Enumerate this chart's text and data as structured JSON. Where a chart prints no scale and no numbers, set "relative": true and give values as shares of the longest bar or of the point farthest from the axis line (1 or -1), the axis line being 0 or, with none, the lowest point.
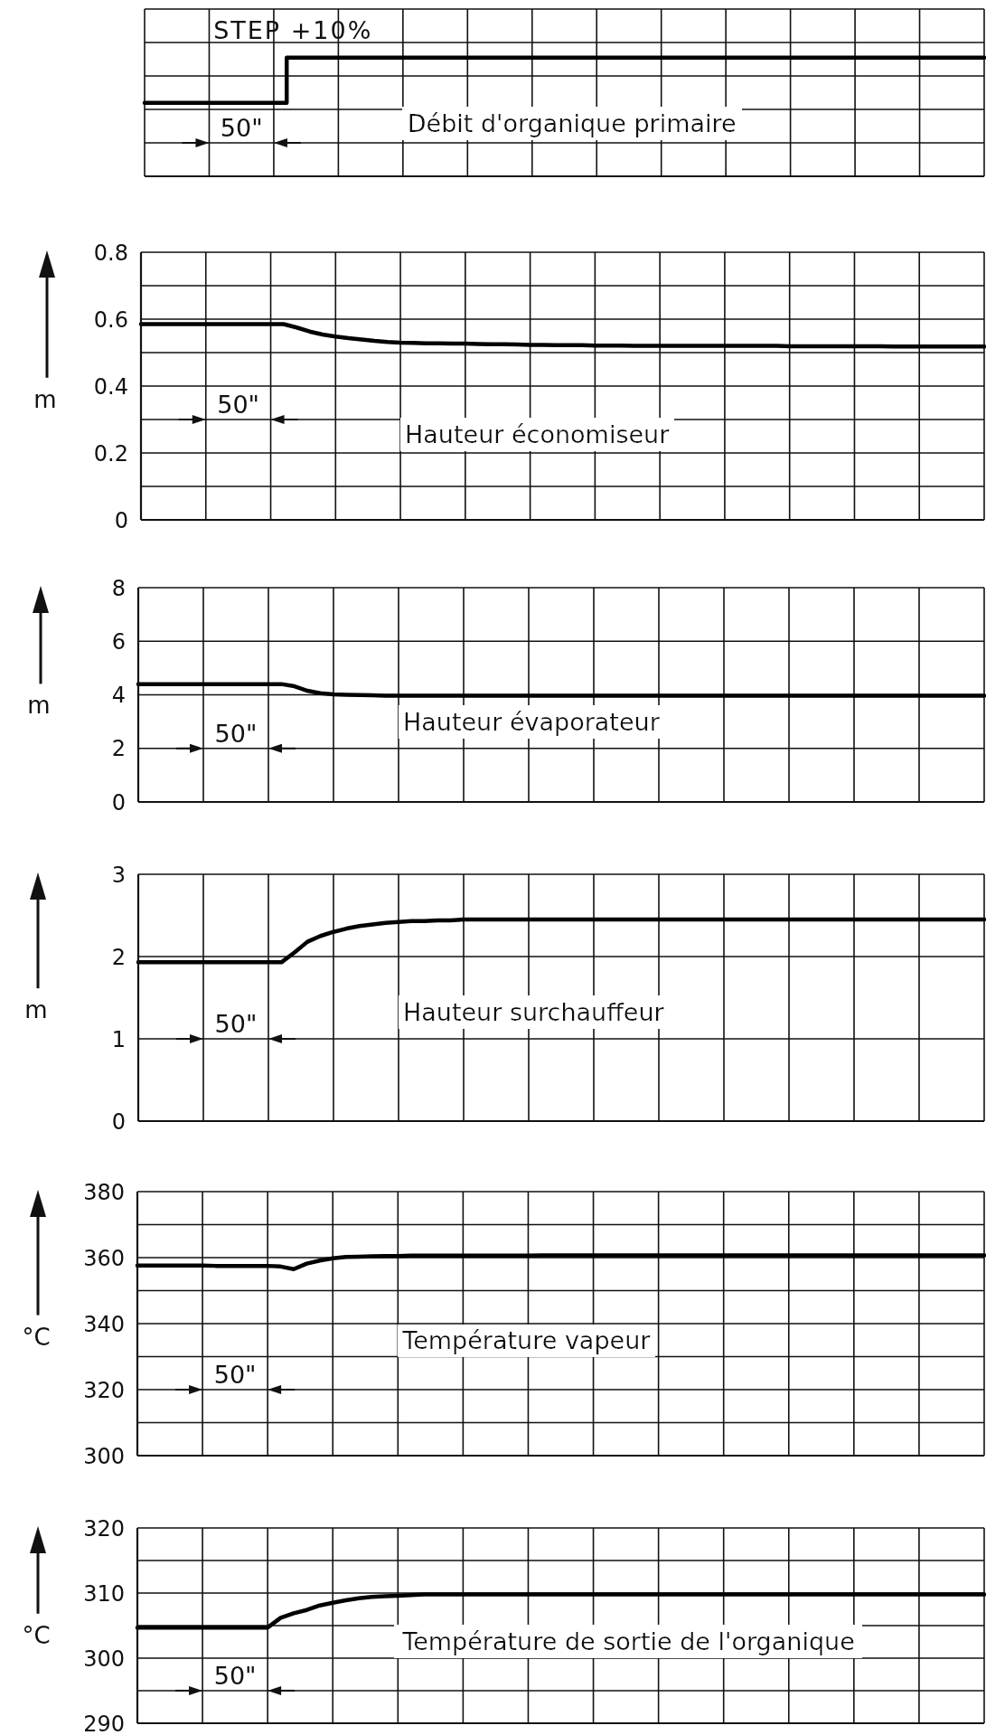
{
  "chart_data": [
    {
      "type": "step",
      "relative": true,
      "categories": [
        null,
        null,
        null,
        null,
        null,
        null,
        null,
        null,
        null,
        null,
        null,
        null,
        null,
        null,
        null,
        null,
        null,
        null,
        null,
        null,
        null,
        null,
        null,
        null,
        null,
        null,
        null,
        null,
        null,
        null,
        null,
        null,
        null,
        null,
        null,
        null,
        null,
        null,
        null,
        null,
        null,
        null,
        null,
        null,
        null,
        null,
        null,
        null,
        null,
        null,
        null,
        null,
        null,
        null,
        null,
        null,
        null,
        null,
        null,
        null,
        null,
        null,
        null,
        null,
        null,
        null
      ],
      "series": [
        {
          "name": "Débit d'organique primaire",
          "color": "#000000",
          "values": [
            0.62,
            0.62,
            0.62,
            0.62,
            0.62,
            0.62,
            0.62,
            0.62,
            0.62,
            0.62,
            0.62,
            1,
            1,
            1,
            1,
            1,
            1,
            1,
            1,
            1,
            1,
            1,
            1,
            1,
            1,
            1,
            1,
            1,
            1,
            1,
            1,
            1,
            1,
            1,
            1,
            1,
            1,
            1,
            1,
            1,
            1,
            1,
            1,
            1,
            1,
            1,
            1,
            1,
            1,
            1,
            1,
            1,
            1,
            1,
            1,
            1,
            1,
            1,
            1,
            1,
            1,
            1,
            1,
            1,
            1,
            1
          ]
        }
      ],
      "grid": true,
      "annotations": [
        "STEP +10%",
        "50\""
      ]
    },
    {
      "type": "line",
      "ylabel": "m",
      "categories": [
        null,
        null,
        null,
        null,
        null,
        null,
        null,
        null,
        null,
        null,
        null,
        null,
        null,
        null,
        null,
        null,
        null,
        null,
        null,
        null,
        null,
        null,
        null,
        null,
        null,
        null,
        null,
        null,
        null,
        null,
        null,
        null,
        null,
        null,
        null,
        null,
        null,
        null,
        null,
        null,
        null,
        null,
        null,
        null,
        null,
        null,
        null,
        null,
        null,
        null,
        null,
        null,
        null,
        null,
        null,
        null,
        null,
        null,
        null,
        null,
        null,
        null,
        null,
        null,
        null,
        null
      ],
      "series": [
        {
          "name": "Hauteur économiseur",
          "color": "#000000",
          "values": [
            0.585,
            0.585,
            0.585,
            0.585,
            0.585,
            0.585,
            0.585,
            0.585,
            0.585,
            0.585,
            0.585,
            0.585,
            0.575,
            0.563,
            0.554,
            0.548,
            0.543,
            0.539,
            0.535,
            0.532,
            0.53,
            0.529,
            0.528,
            0.528,
            0.527,
            0.527,
            0.526,
            0.525,
            0.525,
            0.524,
            0.523,
            0.523,
            0.522,
            0.522,
            0.522,
            0.521,
            0.521,
            0.521,
            0.52,
            0.52,
            0.52,
            0.52,
            0.52,
            0.52,
            0.52,
            0.52,
            0.52,
            0.52,
            0.52,
            0.52,
            0.519,
            0.519,
            0.519,
            0.519,
            0.519,
            0.519,
            0.519,
            0.519,
            0.518,
            0.518,
            0.518,
            0.518,
            0.518,
            0.518,
            0.518,
            0.518
          ]
        }
      ],
      "ylim": [
        0,
        0.8
      ],
      "yticks": [
        0,
        {
          "value": 0.1,
          "label": null
        },
        0.2,
        {
          "value": 0.3,
          "label": null
        },
        0.4,
        {
          "value": 0.5,
          "label": null
        },
        0.6,
        {
          "value": 0.7,
          "label": null
        },
        0.8
      ],
      "grid": true,
      "annotations": [
        "50\""
      ]
    },
    {
      "type": "line",
      "ylabel": "m",
      "categories": [
        null,
        null,
        null,
        null,
        null,
        null,
        null,
        null,
        null,
        null,
        null,
        null,
        null,
        null,
        null,
        null,
        null,
        null,
        null,
        null,
        null,
        null,
        null,
        null,
        null,
        null,
        null,
        null,
        null,
        null,
        null,
        null,
        null,
        null,
        null,
        null,
        null,
        null,
        null,
        null,
        null,
        null,
        null,
        null,
        null,
        null,
        null,
        null,
        null,
        null,
        null,
        null,
        null,
        null,
        null,
        null,
        null,
        null,
        null,
        null,
        null,
        null,
        null,
        null,
        null,
        null
      ],
      "series": [
        {
          "name": "Hauteur évaporateur",
          "color": "#000000",
          "values": [
            4.4,
            4.4,
            4.4,
            4.4,
            4.4,
            4.4,
            4.4,
            4.4,
            4.4,
            4.4,
            4.4,
            4.4,
            4.32,
            4.15,
            4.06,
            4.02,
            4.0,
            3.99,
            3.98,
            3.97,
            3.97,
            3.97,
            3.97,
            3.97,
            3.97,
            3.97,
            3.97,
            3.97,
            3.97,
            3.97,
            3.97,
            3.97,
            3.97,
            3.97,
            3.97,
            3.97,
            3.97,
            3.97,
            3.97,
            3.97,
            3.97,
            3.97,
            3.97,
            3.97,
            3.97,
            3.97,
            3.97,
            3.97,
            3.97,
            3.97,
            3.97,
            3.97,
            3.97,
            3.97,
            3.97,
            3.97,
            3.97,
            3.97,
            3.97,
            3.97,
            3.97,
            3.97,
            3.97,
            3.97,
            3.97,
            3.97
          ]
        }
      ],
      "ylim": [
        0,
        8
      ],
      "yticks": [
        0,
        2,
        4,
        6,
        8
      ],
      "grid": true,
      "annotations": [
        "50\""
      ]
    },
    {
      "type": "line",
      "ylabel": "m",
      "categories": [
        null,
        null,
        null,
        null,
        null,
        null,
        null,
        null,
        null,
        null,
        null,
        null,
        null,
        null,
        null,
        null,
        null,
        null,
        null,
        null,
        null,
        null,
        null,
        null,
        null,
        null,
        null,
        null,
        null,
        null,
        null,
        null,
        null,
        null,
        null,
        null,
        null,
        null,
        null,
        null,
        null,
        null,
        null,
        null,
        null,
        null,
        null,
        null,
        null,
        null,
        null,
        null,
        null,
        null,
        null,
        null,
        null,
        null,
        null,
        null,
        null,
        null,
        null,
        null,
        null,
        null
      ],
      "series": [
        {
          "name": "Hauteur surchauffeur",
          "color": "#000000",
          "values": [
            1.93,
            1.93,
            1.93,
            1.93,
            1.93,
            1.93,
            1.93,
            1.93,
            1.93,
            1.93,
            1.93,
            1.93,
            2.05,
            2.18,
            2.25,
            2.3,
            2.34,
            2.37,
            2.39,
            2.41,
            2.42,
            2.43,
            2.43,
            2.44,
            2.44,
            2.45,
            2.45,
            2.45,
            2.45,
            2.45,
            2.45,
            2.45,
            2.45,
            2.45,
            2.45,
            2.45,
            2.45,
            2.45,
            2.45,
            2.45,
            2.45,
            2.45,
            2.45,
            2.45,
            2.45,
            2.45,
            2.45,
            2.45,
            2.45,
            2.45,
            2.45,
            2.45,
            2.45,
            2.45,
            2.45,
            2.45,
            2.45,
            2.45,
            2.45,
            2.45,
            2.45,
            2.45,
            2.45,
            2.45,
            2.45,
            2.45
          ]
        }
      ],
      "ylim": [
        0,
        3
      ],
      "yticks": [
        0,
        1,
        2,
        3
      ],
      "grid": true,
      "annotations": [
        "50\""
      ]
    },
    {
      "type": "line",
      "ylabel": "°C",
      "categories": [
        null,
        null,
        null,
        null,
        null,
        null,
        null,
        null,
        null,
        null,
        null,
        null,
        null,
        null,
        null,
        null,
        null,
        null,
        null,
        null,
        null,
        null,
        null,
        null,
        null,
        null,
        null,
        null,
        null,
        null,
        null,
        null,
        null,
        null,
        null,
        null,
        null,
        null,
        null,
        null,
        null,
        null,
        null,
        null,
        null,
        null,
        null,
        null,
        null,
        null,
        null,
        null,
        null,
        null,
        null,
        null,
        null,
        null,
        null,
        null,
        null,
        null,
        null,
        null,
        null,
        null
      ],
      "series": [
        {
          "name": "Température vapeur",
          "color": "#000000",
          "values": [
            357.6,
            357.6,
            357.6,
            357.6,
            357.6,
            357.6,
            357.5,
            357.5,
            357.5,
            357.5,
            357.5,
            357.3,
            356.5,
            358.2,
            359.1,
            359.8,
            360.2,
            360.3,
            360.4,
            360.5,
            360.5,
            360.6,
            360.6,
            360.6,
            360.6,
            360.6,
            360.6,
            360.6,
            360.6,
            360.6,
            360.6,
            360.7,
            360.7,
            360.7,
            360.7,
            360.7,
            360.7,
            360.7,
            360.7,
            360.7,
            360.7,
            360.7,
            360.7,
            360.7,
            360.7,
            360.7,
            360.7,
            360.7,
            360.7,
            360.7,
            360.7,
            360.7,
            360.7,
            360.7,
            360.7,
            360.7,
            360.7,
            360.7,
            360.7,
            360.7,
            360.7,
            360.7,
            360.7,
            360.7,
            360.7,
            360.7
          ]
        }
      ],
      "ylim": [
        300,
        380
      ],
      "yticks": [
        300,
        {
          "value": 310,
          "label": null
        },
        320,
        {
          "value": 330,
          "label": null
        },
        340,
        {
          "value": 350,
          "label": null
        },
        360,
        {
          "value": 370,
          "label": null
        },
        380
      ],
      "grid": true,
      "annotations": [
        "50\""
      ]
    },
    {
      "type": "line",
      "ylabel": "°C",
      "categories": [
        null,
        null,
        null,
        null,
        null,
        null,
        null,
        null,
        null,
        null,
        null,
        null,
        null,
        null,
        null,
        null,
        null,
        null,
        null,
        null,
        null,
        null,
        null,
        null,
        null,
        null,
        null,
        null,
        null,
        null,
        null,
        null,
        null,
        null,
        null,
        null,
        null,
        null,
        null,
        null,
        null,
        null,
        null,
        null,
        null,
        null,
        null,
        null,
        null,
        null,
        null,
        null,
        null,
        null,
        null,
        null,
        null,
        null,
        null,
        null,
        null,
        null,
        null,
        null,
        null,
        null
      ],
      "series": [
        {
          "name": "Température de sortie de l'organique",
          "color": "#000000",
          "values": [
            304.7,
            304.7,
            304.7,
            304.7,
            304.7,
            304.7,
            304.7,
            304.7,
            304.7,
            304.7,
            304.7,
            306.2,
            306.9,
            307.4,
            308.1,
            308.5,
            308.9,
            309.2,
            309.4,
            309.5,
            309.6,
            309.7,
            309.8,
            309.8,
            309.8,
            309.8,
            309.8,
            309.8,
            309.8,
            309.8,
            309.8,
            309.8,
            309.8,
            309.8,
            309.8,
            309.8,
            309.8,
            309.8,
            309.8,
            309.8,
            309.8,
            309.8,
            309.8,
            309.8,
            309.8,
            309.8,
            309.8,
            309.8,
            309.8,
            309.8,
            309.8,
            309.8,
            309.8,
            309.8,
            309.8,
            309.8,
            309.8,
            309.8,
            309.8,
            309.8,
            309.8,
            309.8,
            309.8,
            309.8,
            309.8,
            309.8
          ]
        }
      ],
      "ylim": [
        290,
        320
      ],
      "yticks": [
        290,
        {
          "value": 295,
          "label": null
        },
        300,
        {
          "value": 305,
          "label": null
        },
        310,
        {
          "value": 315,
          "label": null
        },
        320
      ],
      "grid": true,
      "annotations": [
        "50\""
      ]
    }
  ]
}
